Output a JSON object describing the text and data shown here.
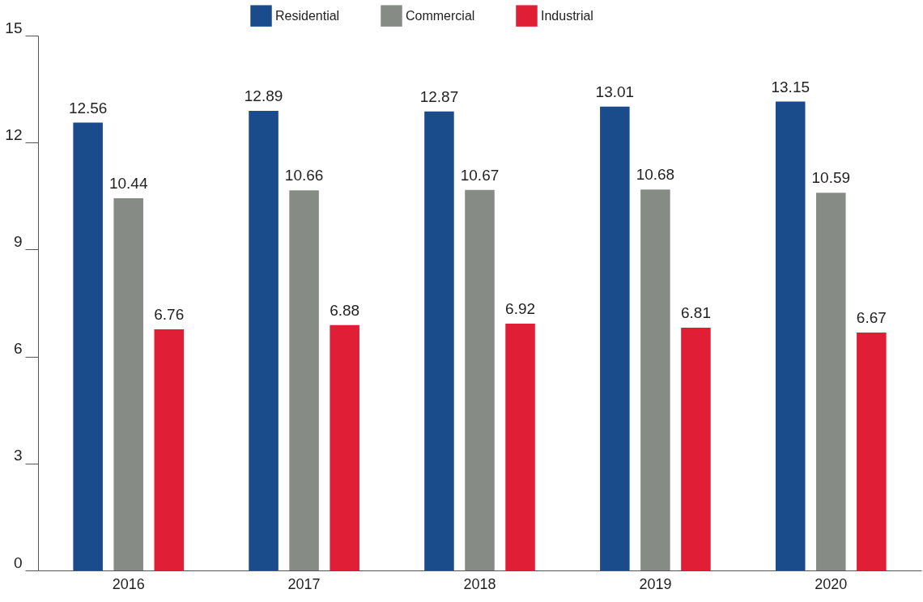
{
  "chart_data": {
    "type": "bar",
    "categories": [
      "2016",
      "2017",
      "2018",
      "2019",
      "2020"
    ],
    "series": [
      {
        "name": "Residential",
        "color": "#1a4c8b",
        "values": [
          12.56,
          12.89,
          12.87,
          13.01,
          13.15
        ]
      },
      {
        "name": "Commercial",
        "color": "#878b85",
        "values": [
          10.44,
          10.66,
          10.67,
          10.68,
          10.59
        ]
      },
      {
        "name": "Industrial",
        "color": "#e01f36",
        "values": [
          6.76,
          6.88,
          6.92,
          6.81,
          6.67
        ]
      }
    ],
    "ylim": [
      0,
      15
    ],
    "yticks": [
      0,
      3,
      6,
      9,
      12,
      15
    ],
    "grid": false,
    "legend": "top",
    "data_labels": true
  }
}
